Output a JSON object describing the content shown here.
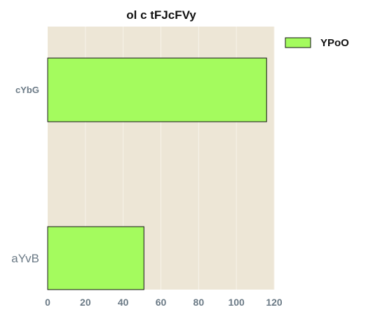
{
  "chart_data": {
    "type": "bar",
    "orientation": "horizontal",
    "title": "ol c tFJcFVy",
    "categories": [
      "cYbG",
      "aYvB"
    ],
    "series": [
      {
        "name": "YPoO",
        "values": [
          116,
          51
        ],
        "color": "#a4fb5e"
      }
    ],
    "xlabel": "",
    "ylabel": "",
    "xlim": [
      0,
      120
    ],
    "xticks": [
      0,
      20,
      40,
      60,
      80,
      100,
      120
    ],
    "grid": true,
    "legend": "top-right",
    "plot_background": "#ede6d6",
    "grid_color": "#f7f3ea"
  }
}
